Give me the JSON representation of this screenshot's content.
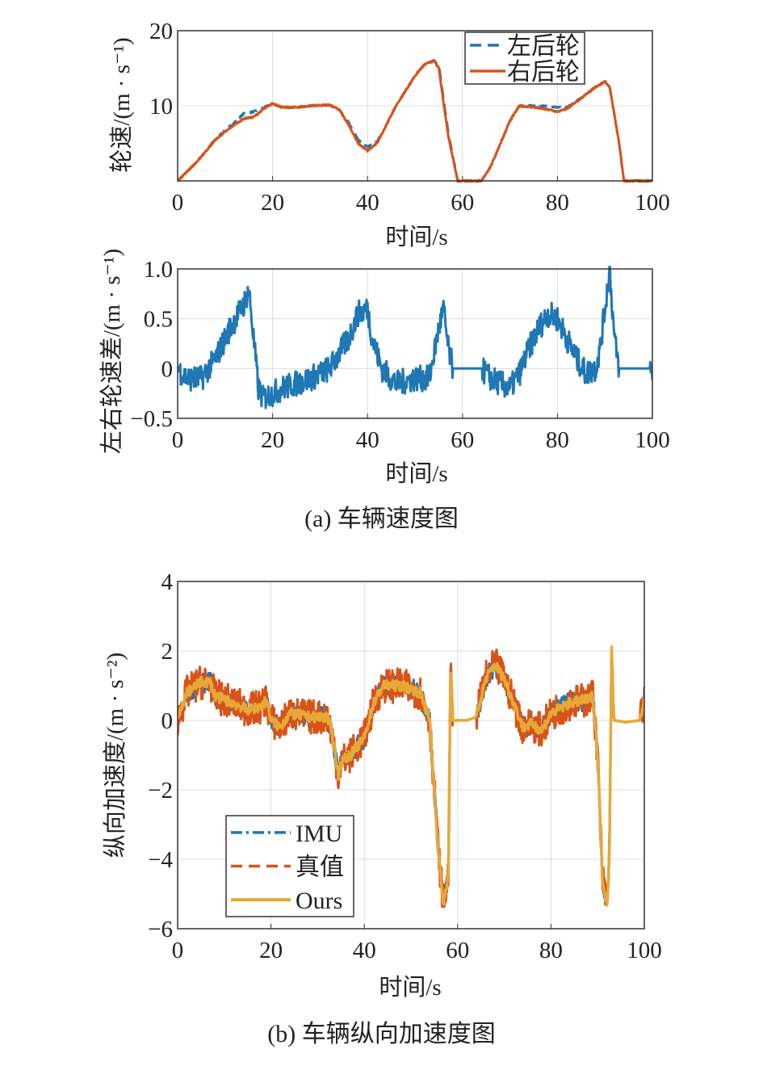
{
  "colors": {
    "blue": "#1f77b4",
    "red": "#d95319",
    "orange": "#e8a838",
    "grid": "#dddddd",
    "axis": "#333333"
  },
  "captions": {
    "a": "(a) 车辆速度图",
    "b": "(b) 车辆纵向加速度图"
  },
  "chart_data": [
    {
      "type": "line",
      "title": "",
      "xlabel": "时间/s",
      "ylabel": "轮速/(m · s⁻¹)",
      "xlim": [
        0,
        100
      ],
      "ylim": [
        0,
        20
      ],
      "xticks": [
        "0",
        "20",
        "40",
        "60",
        "80",
        "100"
      ],
      "yticks": [
        "10",
        "20"
      ],
      "ytick_values": [
        10,
        20
      ],
      "grid": true,
      "legend": "top-right",
      "series": [
        {
          "name": "左后轮",
          "color": "blue",
          "style": "dashed",
          "noise": 0.1,
          "points": [
            [
              0,
              0
            ],
            [
              4,
              2.5
            ],
            [
              8,
              5.6
            ],
            [
              12,
              7.8
            ],
            [
              14,
              9
            ],
            [
              16,
              9.2
            ],
            [
              18,
              9.7
            ],
            [
              20,
              10.3
            ],
            [
              22,
              9.8
            ],
            [
              25,
              9.8
            ],
            [
              28,
              10
            ],
            [
              32,
              10.1
            ],
            [
              34,
              9.5
            ],
            [
              36,
              7.8
            ],
            [
              38,
              5.5
            ],
            [
              40,
              4.5
            ],
            [
              42,
              5.2
            ],
            [
              44,
              7.5
            ],
            [
              46,
              10
            ],
            [
              48,
              12
            ],
            [
              50,
              14
            ],
            [
              52,
              15.5
            ],
            [
              54,
              16
            ],
            [
              55,
              15.5
            ],
            [
              57,
              6.5
            ],
            [
              59,
              0
            ],
            [
              64,
              0
            ],
            [
              66,
              2
            ],
            [
              68,
              5
            ],
            [
              70,
              8
            ],
            [
              72,
              10
            ],
            [
              76,
              10
            ],
            [
              80,
              9.8
            ],
            [
              82,
              9.8
            ],
            [
              84,
              10.6
            ],
            [
              86,
              11.5
            ],
            [
              88,
              12.5
            ],
            [
              90,
              13.2
            ],
            [
              91,
              12.5
            ],
            [
              93,
              5
            ],
            [
              94,
              0
            ],
            [
              100,
              0
            ],
            [
              100,
              0.5
            ]
          ]
        },
        {
          "name": "右后轮",
          "color": "red",
          "style": "solid",
          "noise": 0.1,
          "points": [
            [
              0,
              0
            ],
            [
              4,
              2.5
            ],
            [
              8,
              5.5
            ],
            [
              12,
              7.5
            ],
            [
              14,
              8.3
            ],
            [
              16,
              8.5
            ],
            [
              18,
              9.5
            ],
            [
              20,
              10.3
            ],
            [
              22,
              9.8
            ],
            [
              25,
              9.8
            ],
            [
              28,
              10
            ],
            [
              32,
              10.1
            ],
            [
              34,
              9.5
            ],
            [
              36,
              7.5
            ],
            [
              38,
              5
            ],
            [
              40,
              4
            ],
            [
              42,
              5
            ],
            [
              44,
              7.5
            ],
            [
              46,
              10
            ],
            [
              48,
              12
            ],
            [
              50,
              14
            ],
            [
              52,
              15.5
            ],
            [
              54,
              16
            ],
            [
              55,
              15
            ],
            [
              57,
              6
            ],
            [
              59,
              0
            ],
            [
              64,
              0
            ],
            [
              66,
              2
            ],
            [
              68,
              5
            ],
            [
              70,
              8
            ],
            [
              72,
              10
            ],
            [
              75,
              9.8
            ],
            [
              78,
              9.5
            ],
            [
              80,
              9.2
            ],
            [
              82,
              9.6
            ],
            [
              84,
              10.5
            ],
            [
              86,
              11.5
            ],
            [
              88,
              12.5
            ],
            [
              90,
              13.2
            ],
            [
              91,
              12.5
            ],
            [
              93,
              5
            ],
            [
              94,
              0
            ],
            [
              100,
              0
            ],
            [
              100,
              0.5
            ]
          ]
        }
      ]
    },
    {
      "type": "line",
      "title": "",
      "xlabel": "时间/s",
      "ylabel": "左右轮速差/(m · s⁻¹)",
      "xlim": [
        0,
        100
      ],
      "ylim": [
        -0.5,
        1.0
      ],
      "xticks": [
        "0",
        "20",
        "40",
        "60",
        "80",
        "100"
      ],
      "yticks": [
        "−0.5",
        "0",
        "0.5",
        "1.0"
      ],
      "ytick_values": [
        -0.5,
        0,
        0.5,
        1.0
      ],
      "grid": true,
      "legend": "none",
      "series": [
        {
          "name": "左右轮速差",
          "color": "blue",
          "style": "solid",
          "noise": 0.13,
          "quiet_ranges": [
            [
              58,
              64
            ],
            [
              93,
              99.5
            ]
          ],
          "points": [
            [
              0,
              0
            ],
            [
              2,
              -0.1
            ],
            [
              5,
              -0.1
            ],
            [
              8,
              0.1
            ],
            [
              11,
              0.4
            ],
            [
              14,
              0.65
            ],
            [
              15,
              0.8
            ],
            [
              16,
              0.3
            ],
            [
              17,
              -0.2
            ],
            [
              18,
              -0.3
            ],
            [
              22,
              -0.2
            ],
            [
              28,
              -0.1
            ],
            [
              32,
              0
            ],
            [
              36,
              0.3
            ],
            [
              38,
              0.55
            ],
            [
              40,
              0.6
            ],
            [
              41,
              0.3
            ],
            [
              43,
              0
            ],
            [
              46,
              -0.15
            ],
            [
              50,
              -0.1
            ],
            [
              53,
              -0.1
            ],
            [
              55,
              0.4
            ],
            [
              56,
              0.6
            ],
            [
              57,
              0.2
            ],
            [
              58,
              0
            ],
            [
              64,
              0
            ],
            [
              66,
              -0.1
            ],
            [
              70,
              -0.2
            ],
            [
              72,
              -0.05
            ],
            [
              74,
              0.2
            ],
            [
              76,
              0.4
            ],
            [
              78,
              0.55
            ],
            [
              80,
              0.5
            ],
            [
              82,
              0.3
            ],
            [
              84,
              0.1
            ],
            [
              86,
              -0.05
            ],
            [
              88,
              0
            ],
            [
              89,
              0.2
            ],
            [
              91,
              1.0
            ],
            [
              92,
              0.3
            ],
            [
              93,
              0
            ],
            [
              99.5,
              0
            ],
            [
              100,
              -0.1
            ]
          ]
        }
      ]
    },
    {
      "type": "line",
      "title": "",
      "xlabel": "时间/s",
      "ylabel": "纵向加速度/(m · s⁻²)",
      "xlim": [
        0,
        100
      ],
      "ylim": [
        -6,
        4
      ],
      "xticks": [
        "0",
        "20",
        "40",
        "60",
        "80",
        "100"
      ],
      "yticks": [
        "−6",
        "−4",
        "−2",
        "0",
        "2",
        "4"
      ],
      "ytick_values": [
        -6,
        -4,
        -2,
        0,
        2,
        4
      ],
      "grid": true,
      "legend": "bottom-left",
      "series": [
        {
          "name": "IMU",
          "color": "blue",
          "style": "dashdot",
          "noise": 0.3,
          "quiet_ranges": [
            [
              59,
              64
            ],
            [
              93.5,
              99
            ]
          ],
          "points": "shared"
        },
        {
          "name": "真值",
          "color": "red",
          "style": "dashed",
          "noise": 0.5,
          "quiet_ranges": [
            [
              59,
              64
            ],
            [
              93.5,
              99
            ]
          ],
          "points": "shared"
        },
        {
          "name": "Ours",
          "color": "orange",
          "style": "solid",
          "noise": 0.15,
          "quiet_ranges": [
            [
              59,
              64
            ],
            [
              93.5,
              99
            ]
          ],
          "points": "shared"
        }
      ],
      "shared_points": [
        [
          0,
          0
        ],
        [
          2,
          0.8
        ],
        [
          5,
          1.1
        ],
        [
          7,
          1.1
        ],
        [
          8,
          0.7
        ],
        [
          12,
          0.5
        ],
        [
          15,
          0.3
        ],
        [
          18,
          0.4
        ],
        [
          19,
          0.6
        ],
        [
          20,
          0
        ],
        [
          22,
          -0.2
        ],
        [
          24,
          0.2
        ],
        [
          28,
          0.1
        ],
        [
          32,
          0.1
        ],
        [
          33,
          -0.3
        ],
        [
          34.5,
          -1.6
        ],
        [
          35,
          -1.2
        ],
        [
          37,
          -1.0
        ],
        [
          40,
          -0.5
        ],
        [
          42,
          0.5
        ],
        [
          44,
          1.0
        ],
        [
          48,
          1.0
        ],
        [
          52,
          0.8
        ],
        [
          54,
          0
        ],
        [
          55,
          -2
        ],
        [
          56,
          -4
        ],
        [
          57,
          -5.3
        ],
        [
          58,
          -4.5
        ],
        [
          58.5,
          1.5
        ],
        [
          59,
          0
        ],
        [
          62,
          0
        ],
        [
          64,
          0.1
        ],
        [
          66,
          1.2
        ],
        [
          68,
          1.6
        ],
        [
          70,
          1.2
        ],
        [
          72,
          0.5
        ],
        [
          74,
          -0.2
        ],
        [
          76,
          -0.1
        ],
        [
          78,
          -0.3
        ],
        [
          80,
          0.2
        ],
        [
          84,
          0.5
        ],
        [
          88,
          0.6
        ],
        [
          89,
          0.7
        ],
        [
          90,
          -1
        ],
        [
          91,
          -4.5
        ],
        [
          92,
          -5.3
        ],
        [
          92.5,
          -4
        ],
        [
          93,
          2
        ],
        [
          93.5,
          0
        ],
        [
          96,
          -0.05
        ],
        [
          99,
          0
        ],
        [
          100,
          0.6
        ]
      ]
    }
  ]
}
